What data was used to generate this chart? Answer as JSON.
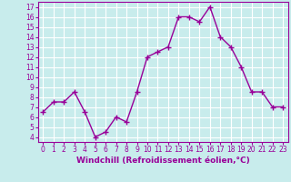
{
  "x": [
    0,
    1,
    2,
    3,
    4,
    5,
    6,
    7,
    8,
    9,
    10,
    11,
    12,
    13,
    14,
    15,
    16,
    17,
    18,
    19,
    20,
    21,
    22,
    23
  ],
  "y": [
    6.5,
    7.5,
    7.5,
    8.5,
    6.5,
    4.0,
    4.5,
    6.0,
    5.5,
    8.5,
    12.0,
    12.5,
    13.0,
    16.0,
    16.0,
    15.5,
    17.0,
    14.0,
    13.0,
    11.0,
    8.5,
    8.5,
    7.0,
    7.0
  ],
  "line_color": "#990099",
  "marker": "+",
  "marker_color": "#990099",
  "xlabel": "Windchill (Refroidissement éolien,°C)",
  "ylim_min": 3.5,
  "ylim_max": 17.5,
  "xlim_min": -0.5,
  "xlim_max": 23.5,
  "yticks": [
    4,
    5,
    6,
    7,
    8,
    9,
    10,
    11,
    12,
    13,
    14,
    15,
    16,
    17
  ],
  "xticks": [
    0,
    1,
    2,
    3,
    4,
    5,
    6,
    7,
    8,
    9,
    10,
    11,
    12,
    13,
    14,
    15,
    16,
    17,
    18,
    19,
    20,
    21,
    22,
    23
  ],
  "background_color": "#c8ecec",
  "grid_color": "#ffffff",
  "tick_fontsize": 5.5,
  "xlabel_fontsize": 6.5,
  "line_width": 1.0,
  "marker_size": 4
}
